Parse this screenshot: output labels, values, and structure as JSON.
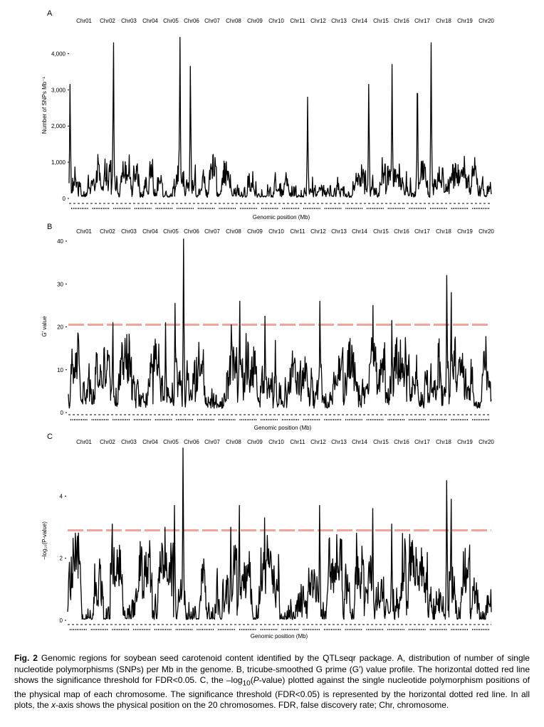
{
  "chromosomes": [
    "Chr01",
    "Chr02",
    "Chr03",
    "Chr04",
    "Chr05",
    "Chr06",
    "Chr07",
    "Chr08",
    "Chr09",
    "Chr10",
    "Chr11",
    "Chr12",
    "Chr13",
    "Chr14",
    "Chr15",
    "Chr16",
    "Chr17",
    "Chr18",
    "Chr19",
    "Chr20"
  ],
  "colors": {
    "trace": "#000000",
    "threshold": "#f4a39a",
    "text": "#000000"
  },
  "chart_data": [
    {
      "type": "line",
      "panel": "A",
      "ylabel": "Number of SNPs Mb⁻¹",
      "xlabel": "Genomic position (Mb)",
      "ylim": [
        0,
        4400
      ],
      "yticks": [
        0,
        1000,
        2000,
        3000,
        4000
      ],
      "ytick_labels": [
        "0",
        "1,000",
        "2,000",
        "3,000",
        "4,000"
      ],
      "baseline": 60,
      "noise": 700,
      "threshold": null,
      "peaks": [
        {
          "chr": 1,
          "pos": 0.05,
          "value": 3150
        },
        {
          "chr": 3,
          "pos": 0.1,
          "value": 4300
        },
        {
          "chr": 6,
          "pos": 0.25,
          "value": 4450
        },
        {
          "chr": 6,
          "pos": 0.75,
          "value": 3650
        },
        {
          "chr": 15,
          "pos": 0.2,
          "value": 3150
        },
        {
          "chr": 16,
          "pos": 0.3,
          "value": 3700
        },
        {
          "chr": 18,
          "pos": 0.15,
          "value": 4300
        },
        {
          "chr": 17,
          "pos": 0.5,
          "value": 2900
        },
        {
          "chr": 12,
          "pos": 0.3,
          "value": 2800
        }
      ]
    },
    {
      "type": "line",
      "panel": "B",
      "ylabel": "G′ value",
      "xlabel": "Genomic position (Mb)",
      "ylim": [
        0,
        40
      ],
      "yticks": [
        0,
        10,
        20,
        30,
        40
      ],
      "ytick_labels": [
        "0",
        "10",
        "20",
        "30",
        "40"
      ],
      "baseline": 2,
      "noise": 10,
      "threshold": 20.5,
      "peaks": [
        {
          "chr": 6,
          "pos": 0.45,
          "value": 40.5
        },
        {
          "chr": 6,
          "pos": 0.05,
          "value": 25.5
        },
        {
          "chr": 9,
          "pos": 0.1,
          "value": 26
        },
        {
          "chr": 12,
          "pos": 0.9,
          "value": 26
        },
        {
          "chr": 10,
          "pos": 0.3,
          "value": 22.5
        },
        {
          "chr": 15,
          "pos": 0.4,
          "value": 25
        },
        {
          "chr": 16,
          "pos": 0.3,
          "value": 21.5
        },
        {
          "chr": 18,
          "pos": 0.9,
          "value": 32
        },
        {
          "chr": 19,
          "pos": 0.1,
          "value": 28
        },
        {
          "chr": 5,
          "pos": 0.6,
          "value": 21
        },
        {
          "chr": 3,
          "pos": 0.1,
          "value": 21
        },
        {
          "chr": 8,
          "pos": 0.7,
          "value": 20.5
        }
      ]
    },
    {
      "type": "line",
      "panel": "C",
      "ylabel": "−log₁₀(P-value)",
      "xlabel": "Genomic position (Mb)",
      "ylim": [
        0,
        5.5
      ],
      "yticks": [
        0,
        2,
        4
      ],
      "ytick_labels": [
        "0",
        "2",
        "4"
      ],
      "baseline": 0.05,
      "noise": 1.7,
      "threshold": 2.9,
      "peaks": [
        {
          "chr": 6,
          "pos": 0.45,
          "value": 5.55
        },
        {
          "chr": 6,
          "pos": 0.05,
          "value": 3.7
        },
        {
          "chr": 9,
          "pos": 0.1,
          "value": 3.7
        },
        {
          "chr": 12,
          "pos": 0.9,
          "value": 3.7
        },
        {
          "chr": 10,
          "pos": 0.3,
          "value": 3.3
        },
        {
          "chr": 15,
          "pos": 0.4,
          "value": 3.6
        },
        {
          "chr": 16,
          "pos": 0.3,
          "value": 3.1
        },
        {
          "chr": 18,
          "pos": 0.9,
          "value": 4.5
        },
        {
          "chr": 19,
          "pos": 0.1,
          "value": 3.9
        },
        {
          "chr": 5,
          "pos": 0.6,
          "value": 3.0
        },
        {
          "chr": 3,
          "pos": 0.1,
          "value": 3.1
        },
        {
          "chr": 8,
          "pos": 0.7,
          "value": 3.0
        }
      ]
    }
  ],
  "caption": {
    "fig_label": "Fig. 2",
    "text_1": "  Genomic regions for soybean seed carotenoid content identified by the QTLseqr package.  A, distribution of number of single nucleotide polymorphisms (SNPs) per Mb in the genome.  B, tricube-smoothed G prime (G′) value profile.  The horizontal dotted red line shows the significance threshold for FDR<0.05.  C, the –log",
    "sub": "10",
    "text_2": "(",
    "italic_p": "P",
    "text_3": "-value)  plotted against the single nucleotide polymorphism positions of the physical map of each chromosome.  The significance threshold (FDR<0.05) is represented by the horizontal dotted red line.  In all plots, the ",
    "italic_x": "x",
    "text_4": "-axis shows the physical position on the 20 chromosomes.  FDR, false discovery rate; Chr, chromosome."
  }
}
